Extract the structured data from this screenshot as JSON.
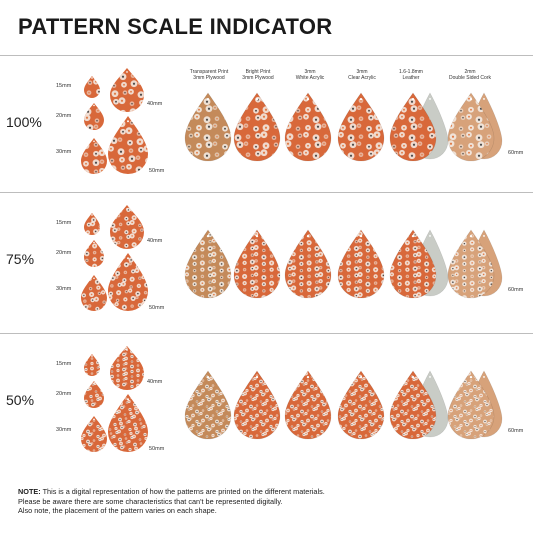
{
  "title": "PATTERN SCALE INDICATOR",
  "scales": [
    {
      "label": "100%",
      "factor": 1.0
    },
    {
      "label": "75%",
      "factor": 0.75
    },
    {
      "label": "50%",
      "factor": 0.5
    }
  ],
  "sizes": {
    "s15": "15mm",
    "s20": "20mm",
    "s30": "30mm",
    "s40": "40mm",
    "s50": "50mm",
    "s60": "60mm"
  },
  "materials": [
    {
      "line1": "Transparent Print",
      "line2": "3mm Plywood"
    },
    {
      "line1": "Bright Print",
      "line2": "3mm Plywood"
    },
    {
      "line1": "3mm",
      "line2": "White Acrylic"
    },
    {
      "line1": "3mm",
      "line2": "Clear Acrylic"
    },
    {
      "line1": "1.6-1.8mm",
      "line2": "Leather"
    },
    {
      "line1": "2mm",
      "line2": "Double Sided Cork"
    }
  ],
  "note": {
    "label": "NOTE:",
    "line1": " This is a digital representation of how the patterns are printed on the different materials.",
    "line2": "Please be aware there are some characteristics that can't be represented digitally.",
    "line3": "Also note, the placement of the pattern varies on each shape."
  },
  "colors": {
    "pattern": "#d8683a",
    "wood": "#c48a5a",
    "leather": "#c9ccc6",
    "cork": "#d7a27a",
    "flower": "#f4efe9"
  }
}
